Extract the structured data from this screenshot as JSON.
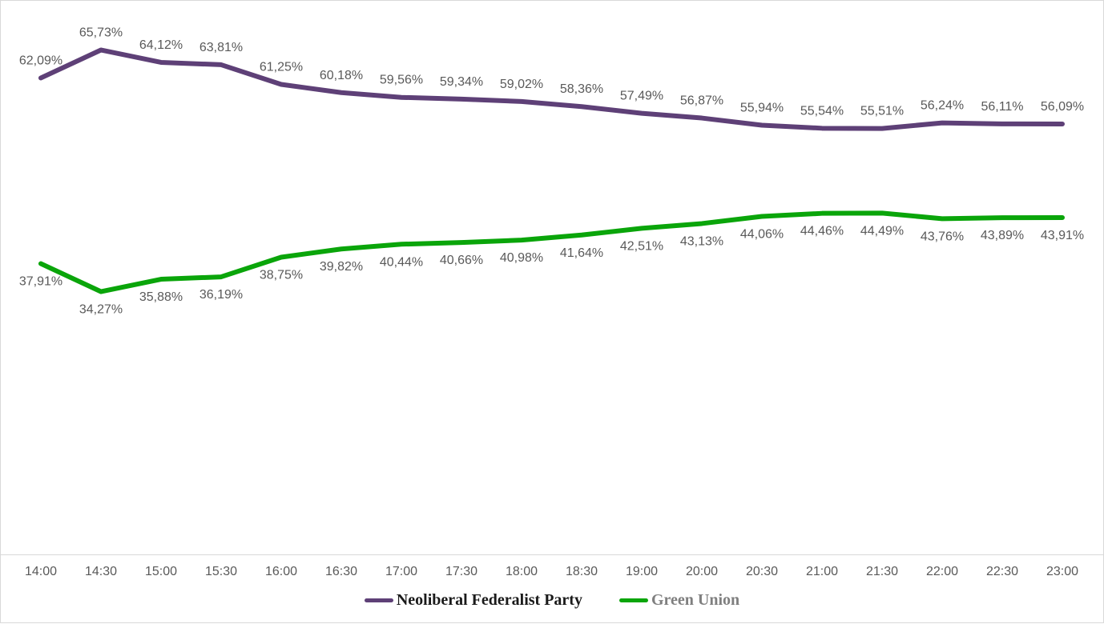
{
  "chart_data": {
    "type": "line",
    "title": "",
    "xlabel": "",
    "ylabel": "",
    "ylim": [
      0,
      70
    ],
    "grid": false,
    "legend_position": "bottom",
    "background": "#ffffff",
    "frame_color": "#d9d9d9",
    "axis_line_color": "#d9d9d9",
    "label_color": "#595959",
    "tick_color": "#595959",
    "categories": [
      "14:00",
      "14:30",
      "15:00",
      "15:30",
      "16:00",
      "16:30",
      "17:00",
      "17:30",
      "18:00",
      "18:30",
      "19:00",
      "20:00",
      "20:30",
      "21:00",
      "21:30",
      "22:00",
      "22:30",
      "23:00"
    ],
    "series": [
      {
        "name": "Neoliberal Federalist Party",
        "color": "#5e4077",
        "legend_text_color": "#1a1a1a",
        "label_position": "above",
        "values": [
          62.09,
          65.73,
          64.12,
          63.81,
          61.25,
          60.18,
          59.56,
          59.34,
          59.02,
          58.36,
          57.49,
          56.87,
          55.94,
          55.54,
          55.51,
          56.24,
          56.11,
          56.09
        ],
        "labels": [
          "62,09%",
          "65,73%",
          "64,12%",
          "63,81%",
          "61,25%",
          "60,18%",
          "59,56%",
          "59,34%",
          "59,02%",
          "58,36%",
          "57,49%",
          "56,87%",
          "55,94%",
          "55,54%",
          "55,51%",
          "56,24%",
          "56,11%",
          "56,09%"
        ]
      },
      {
        "name": "Green Union",
        "color": "#0aa50a",
        "legend_text_color": "#7f7f7f",
        "label_position": "below",
        "values": [
          37.91,
          34.27,
          35.88,
          36.19,
          38.75,
          39.82,
          40.44,
          40.66,
          40.98,
          41.64,
          42.51,
          43.13,
          44.06,
          44.46,
          44.49,
          43.76,
          43.89,
          43.91
        ],
        "labels": [
          "37,91%",
          "34,27%",
          "35,88%",
          "36,19%",
          "38,75%",
          "39,82%",
          "40,44%",
          "40,66%",
          "40,98%",
          "41,64%",
          "42,51%",
          "43,13%",
          "44,06%",
          "44,46%",
          "44,49%",
          "43,76%",
          "43,89%",
          "43,91%"
        ]
      }
    ]
  }
}
